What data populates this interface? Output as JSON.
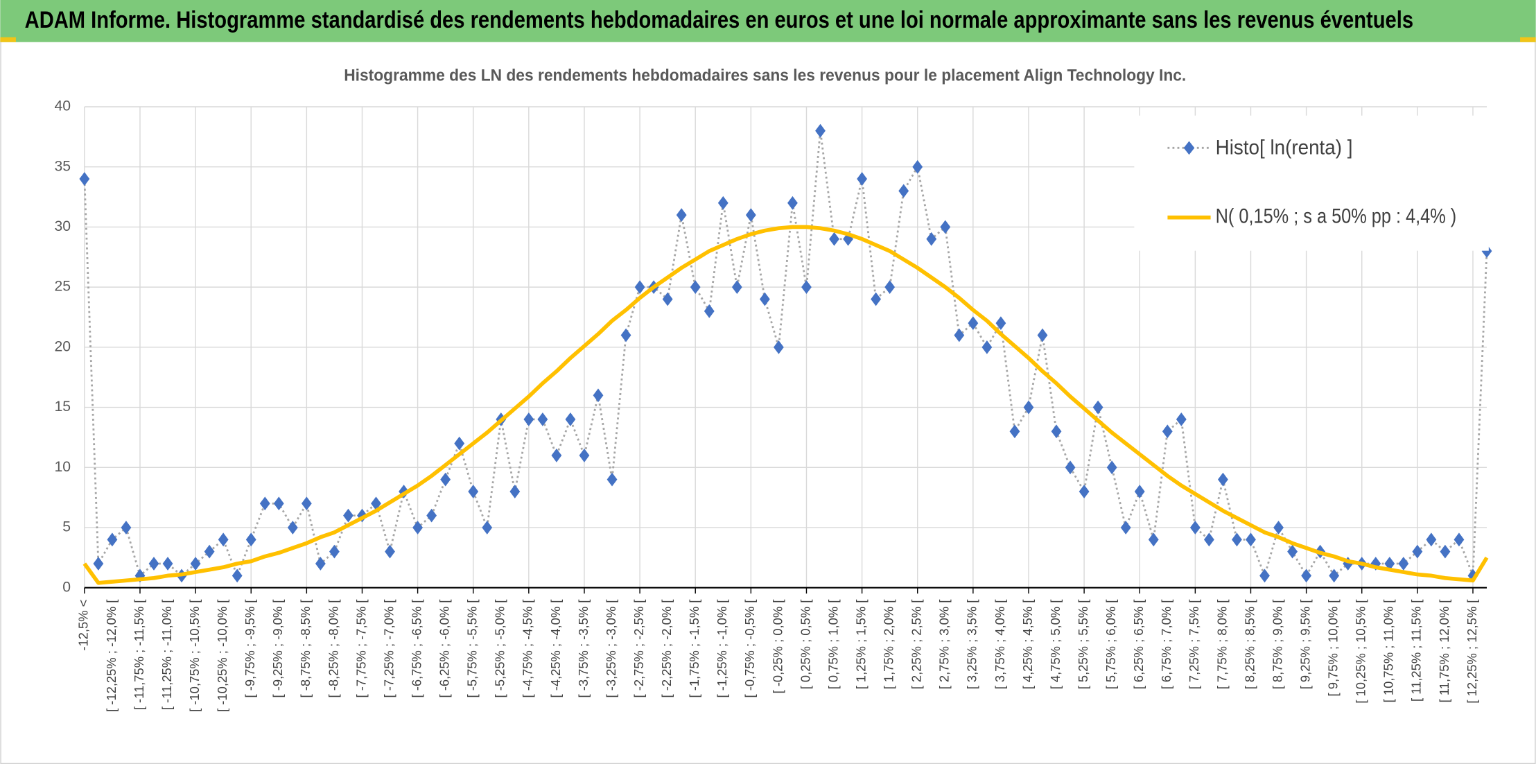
{
  "chart_data": {
    "type": "line",
    "title": "ADAM Informe. Histogramme standardisé des rendements hebdomadaires en euros et une loi normale approximante sans les revenus éventuels",
    "subtitle": "Histogramme des LN des rendements hebdomadaires sans les revenus pour le placement Align Technology Inc.",
    "categories": [
      "-12,5% <",
      null,
      "[ -12,25% ; -12,0% [",
      null,
      "[ -11,75% ; -11,5% [",
      null,
      "[ -11,25% ; -11,0% [",
      null,
      "[ -10,75% ; -10,5% [",
      null,
      "[ -10,25% ; -10,0% [",
      null,
      "[ -9,75% ; -9,5% [",
      null,
      "[ -9,25% ; -9,0% [",
      null,
      "[ -8,75% ; -8,5% [",
      null,
      "[ -8,25% ; -8,0% [",
      null,
      "[ -7,75% ; -7,5% [",
      null,
      "[ -7,25% ; -7,0% [",
      null,
      "[ -6,75% ; -6,5% [",
      null,
      "[ -6,25% ; -6,0% [",
      null,
      "[ -5,75% ; -5,5% [",
      null,
      "[ -5,25% ; -5,0% [",
      null,
      "[ -4,75% ; -4,5% [",
      null,
      "[ -4,25% ; -4,0% [",
      null,
      "[ -3,75% ; -3,5% [",
      null,
      "[ -3,25% ; -3,0% [",
      null,
      "[ -2,75% ; -2,5% [",
      null,
      "[ -2,25% ; -2,0% [",
      null,
      "[ -1,75% ; -1,5% [",
      null,
      "[ -1,25% ; -1,0% [",
      null,
      "[ -0,75% ; -0,5% [",
      null,
      "[ -0,25% ; 0,0% [",
      null,
      "[ 0,25% ; 0,5% [",
      null,
      "[ 0,75% ; 1,0% [",
      null,
      "[ 1,25% ; 1,5% [",
      null,
      "[ 1,75% ; 2,0% [",
      null,
      "[ 2,25% ; 2,5% [",
      null,
      "[ 2,75% ; 3,0% [",
      null,
      "[ 3,25% ; 3,5% [",
      null,
      "[ 3,75% ; 4,0% [",
      null,
      "[ 4,25% ; 4,5% [",
      null,
      "[ 4,75% ; 5,0% [",
      null,
      "[ 5,25% ; 5,5% [",
      null,
      "[ 5,75% ; 6,0% [",
      null,
      "[ 6,25% ; 6,5% [",
      null,
      "[ 6,75% ; 7,0% [",
      null,
      "[ 7,25% ; 7,5% [",
      null,
      "[ 7,75% ; 8,0% [",
      null,
      "[ 8,25% ; 8,5% [",
      null,
      "[ 8,75% ; 9,0% [",
      null,
      "[ 9,25% ; 9,5% [",
      null,
      "[ 9,75% ; 10,0% [",
      null,
      "[ 10,25% ; 10,5% [",
      null,
      "[ 10,75% ; 11,0% [",
      null,
      "[ 11,25% ; 11,5% [",
      null,
      "[ 11,75% ; 12,0% [",
      null,
      "[ 12,25% ; 12,5% [",
      null
    ],
    "series": [
      {
        "name": "Histo[ ln(renta) ]",
        "color": "#4472c4",
        "values": [
          34,
          2,
          4,
          5,
          1,
          2,
          2,
          1,
          2,
          3,
          4,
          1,
          4,
          7,
          7,
          5,
          7,
          2,
          3,
          6,
          6,
          7,
          3,
          8,
          5,
          6,
          9,
          12,
          8,
          5,
          14,
          8,
          14,
          14,
          11,
          14,
          11,
          16,
          9,
          21,
          25,
          25,
          24,
          31,
          25,
          23,
          32,
          25,
          31,
          24,
          20,
          32,
          25,
          38,
          29,
          29,
          34,
          24,
          25,
          33,
          35,
          29,
          30,
          21,
          22,
          20,
          22,
          13,
          15,
          21,
          13,
          10,
          8,
          15,
          10,
          5,
          8,
          4,
          13,
          14,
          5,
          4,
          9,
          4,
          4,
          1,
          5,
          3,
          1,
          3,
          1,
          2,
          2,
          2,
          2,
          2,
          3,
          4,
          3,
          4,
          1,
          28
        ]
      },
      {
        "name": "N( 0,15% ; s a 50% pp : 4,4% )",
        "color": "#ffc000",
        "values": [
          2.0,
          0.4,
          0.5,
          0.6,
          0.7,
          0.8,
          1.0,
          1.1,
          1.3,
          1.5,
          1.7,
          2.0,
          2.2,
          2.6,
          2.9,
          3.3,
          3.7,
          4.2,
          4.6,
          5.2,
          5.8,
          6.4,
          7.1,
          7.8,
          8.5,
          9.3,
          10.2,
          11.1,
          12.0,
          12.9,
          13.9,
          14.9,
          15.9,
          17.0,
          18.0,
          19.1,
          20.1,
          21.1,
          22.2,
          23.1,
          24.1,
          25.0,
          25.8,
          26.6,
          27.3,
          28.0,
          28.5,
          29.0,
          29.4,
          29.7,
          29.9,
          30.0,
          30.0,
          29.9,
          29.7,
          29.4,
          29.0,
          28.5,
          28.0,
          27.3,
          26.6,
          25.8,
          25.0,
          24.1,
          23.1,
          22.2,
          21.1,
          20.1,
          19.1,
          18.0,
          17.0,
          15.9,
          14.9,
          13.9,
          12.9,
          12.0,
          11.1,
          10.2,
          9.3,
          8.5,
          7.8,
          7.1,
          6.4,
          5.8,
          5.2,
          4.6,
          4.2,
          3.7,
          3.3,
          2.9,
          2.6,
          2.2,
          2.0,
          1.7,
          1.5,
          1.3,
          1.1,
          1.0,
          0.8,
          0.7,
          0.6,
          2.5
        ]
      }
    ],
    "ylim": [
      0,
      40
    ],
    "yticks": [
      0,
      5,
      10,
      15,
      20,
      25,
      30,
      35,
      40
    ],
    "grid": true,
    "legend": "top-right"
  }
}
